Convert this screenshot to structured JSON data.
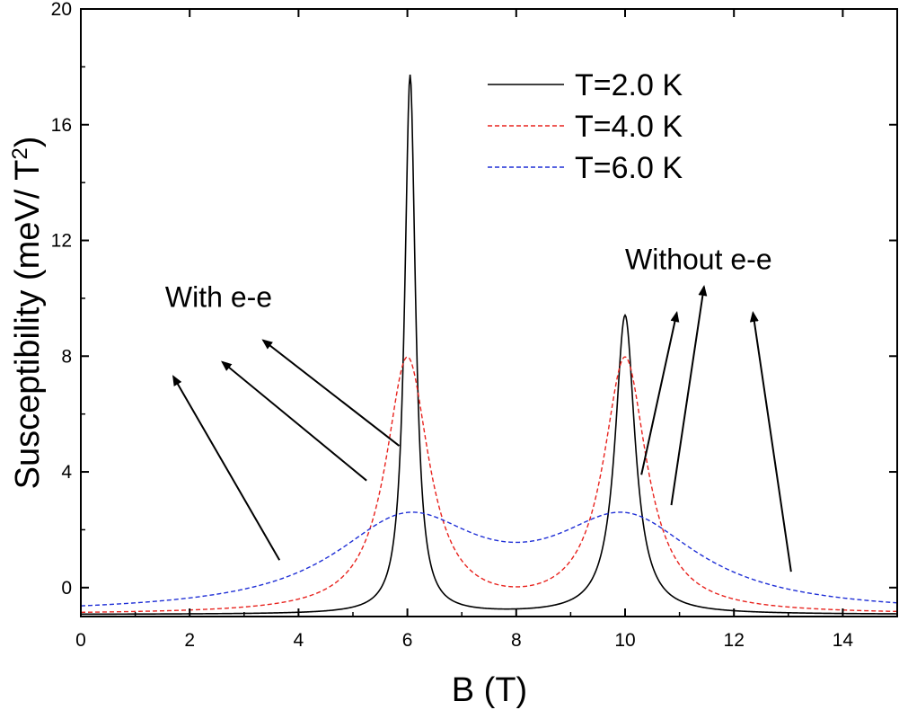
{
  "chart_data": {
    "type": "line",
    "title": "",
    "xlabel": "B (T)",
    "ylabel": "Susceptibility (meV/ T",
    "ylabel_sup": "2",
    "ylabel_end": ")",
    "xlim": [
      0,
      15
    ],
    "ylim": [
      -1,
      20
    ],
    "x_ticks": [
      0,
      2,
      4,
      6,
      8,
      10,
      12,
      14
    ],
    "y_ticks": [
      0,
      4,
      8,
      12,
      16,
      20
    ],
    "grid": false,
    "legend_position": "top-right",
    "series": [
      {
        "name": "T=2.0 K",
        "color": "#000000",
        "dash": "solid",
        "baseline": -0.93,
        "peaks": [
          {
            "center": 6.05,
            "height": 17.7,
            "width": 0.12
          },
          {
            "center": 10.0,
            "height": 9.4,
            "width": 0.22
          }
        ]
      },
      {
        "name": "T=4.0 K",
        "color": "#e8231e",
        "dash": "dashed",
        "baseline": -0.93,
        "peaks": [
          {
            "center": 6.0,
            "height": 7.85,
            "width": 0.48
          },
          {
            "center": 10.0,
            "height": 7.85,
            "width": 0.48
          }
        ]
      },
      {
        "name": "T=6.0 K",
        "color": "#1f2fd6",
        "dash": "dashed",
        "baseline": -0.93,
        "peaks": [
          {
            "center": 6.0,
            "height": 2.15,
            "width": 1.65
          },
          {
            "center": 10.0,
            "height": 2.15,
            "width": 1.65
          }
        ]
      }
    ],
    "annotations": [
      {
        "text": "With e-e",
        "anchor": {
          "x": 1.55,
          "y": 9.7
        },
        "arrows": [
          {
            "from": {
              "x": 3.65,
              "y": 0.95
            },
            "to": {
              "x": 1.7,
              "y": 7.3
            }
          },
          {
            "from": {
              "x": 5.25,
              "y": 3.7
            },
            "to": {
              "x": 2.6,
              "y": 7.8
            }
          },
          {
            "from": {
              "x": 5.85,
              "y": 4.9
            },
            "to": {
              "x": 3.35,
              "y": 8.55
            }
          }
        ]
      },
      {
        "text": "Without e-e",
        "anchor": {
          "x": 10.0,
          "y": 11.0
        },
        "arrows": [
          {
            "from": {
              "x": 10.3,
              "y": 3.9
            },
            "to": {
              "x": 10.95,
              "y": 9.5
            }
          },
          {
            "from": {
              "x": 10.85,
              "y": 2.85
            },
            "to": {
              "x": 11.45,
              "y": 10.4
            }
          },
          {
            "from": {
              "x": 13.05,
              "y": 0.55
            },
            "to": {
              "x": 12.35,
              "y": 9.5
            }
          }
        ]
      }
    ]
  }
}
